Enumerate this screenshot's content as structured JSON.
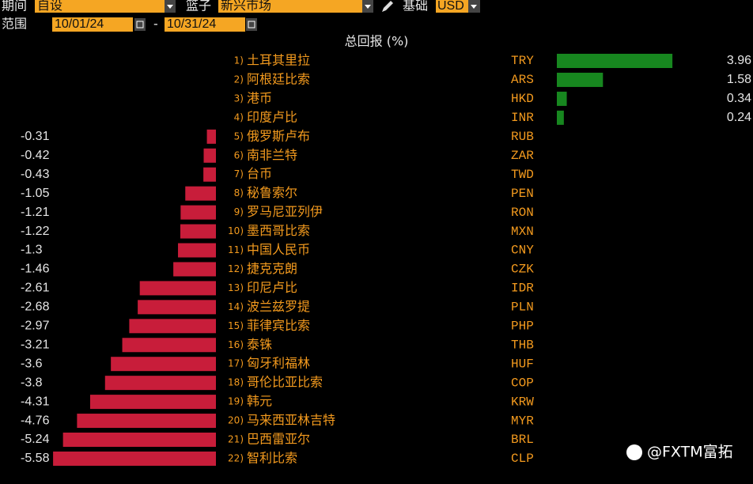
{
  "controls": {
    "period_label": "期间",
    "period_value": "自设",
    "basket_label": "篮子",
    "basket_value": "新兴市场",
    "base_label": "基础",
    "base_value": "USD",
    "range_label": "范围",
    "start_date": "10/01/24",
    "range_separator": "-",
    "end_date": "10/31/24"
  },
  "watermark": "@FXTM富拓",
  "chart_data": {
    "type": "bar",
    "orientation": "horizontal",
    "title": "总回报 (%)",
    "ranks": [
      "1)",
      "2)",
      "3)",
      "4)",
      "5)",
      "6)",
      "7)",
      "8)",
      "9)",
      "10)",
      "11)",
      "12)",
      "13)",
      "14)",
      "15)",
      "16)",
      "17)",
      "18)",
      "19)",
      "20)",
      "21)",
      "22)"
    ],
    "categories": [
      "土耳其里拉",
      "阿根廷比索",
      "港币",
      "印度卢比",
      "俄罗斯卢布",
      "南非兰特",
      "台币",
      "秘鲁索尔",
      "罗马尼亚列伊",
      "墨西哥比索",
      "中国人民币",
      "捷克克朗",
      "印尼卢比",
      "波兰兹罗提",
      "菲律宾比索",
      "泰铢",
      "匈牙利福林",
      "哥伦比亚比索",
      "韩元",
      "马来西亚林吉特",
      "巴西雷亚尔",
      "智利比索"
    ],
    "codes": [
      "TRY",
      "ARS",
      "HKD",
      "INR",
      "RUB",
      "ZAR",
      "TWD",
      "PEN",
      "RON",
      "MXN",
      "CNY",
      "CZK",
      "IDR",
      "PLN",
      "PHP",
      "THB",
      "HUF",
      "COP",
      "KRW",
      "MYR",
      "BRL",
      "CLP"
    ],
    "values": [
      3.96,
      1.58,
      0.34,
      0.24,
      -0.31,
      -0.42,
      -0.43,
      -1.05,
      -1.21,
      -1.22,
      -1.3,
      -1.46,
      -2.61,
      -2.68,
      -2.97,
      -3.21,
      -3.6,
      -3.8,
      -4.31,
      -4.76,
      -5.24,
      -5.58
    ],
    "positive_color": "#17871f",
    "negative_color": "#c81d3a"
  }
}
